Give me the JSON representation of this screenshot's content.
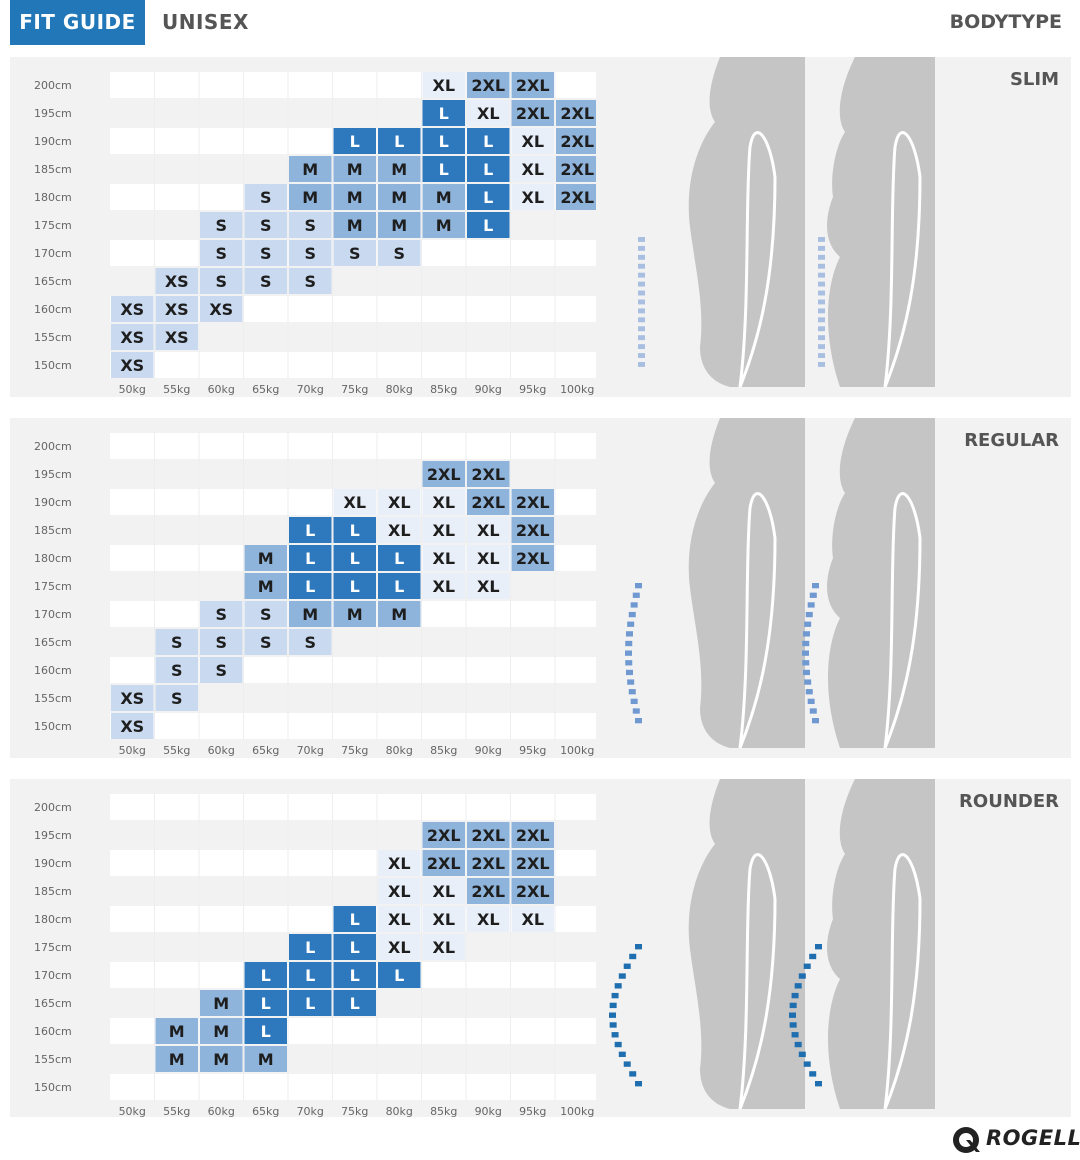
{
  "header": {
    "badge": "FIT GUIDE",
    "subtitle": "UNISEX",
    "right_label": "BODYTYPE"
  },
  "brand": {
    "name": "ROGELLI"
  },
  "colors": {
    "dark": "#2e78bd",
    "medium": "#8fb4dc",
    "light": "#c9d9ef",
    "pale": "#e9eff8",
    "figure": "#c5c5c5",
    "grid": "#f2f2f2"
  },
  "chart_data": [
    {
      "type": "table",
      "title": "SLIM",
      "marker_style": "slim",
      "x": [
        "50kg",
        "55kg",
        "60kg",
        "65kg",
        "70kg",
        "75kg",
        "80kg",
        "85kg",
        "90kg",
        "95kg",
        "100kg"
      ],
      "y": [
        "200cm",
        "195cm",
        "190cm",
        "185cm",
        "180cm",
        "175cm",
        "170cm",
        "165cm",
        "160cm",
        "155cm",
        "150cm"
      ],
      "cells": [
        [
          null,
          null,
          null,
          null,
          null,
          null,
          null,
          "XL",
          "2XL",
          "2XL",
          null
        ],
        [
          null,
          null,
          null,
          null,
          null,
          null,
          null,
          "L",
          "XL",
          "2XL",
          "2XL"
        ],
        [
          null,
          null,
          null,
          null,
          null,
          "L",
          "L",
          "L",
          "L",
          "XL",
          "2XL"
        ],
        [
          null,
          null,
          null,
          null,
          "M",
          "M",
          "M",
          "L",
          "L",
          "XL",
          "2XL"
        ],
        [
          null,
          null,
          null,
          "S",
          "M",
          "M",
          "M",
          "M",
          "L",
          "XL",
          "2XL"
        ],
        [
          null,
          null,
          "S",
          "S",
          "S",
          "M",
          "M",
          "M",
          "L",
          null,
          null
        ],
        [
          null,
          null,
          "S",
          "S",
          "S",
          "S",
          "S",
          null,
          null,
          null,
          null
        ],
        [
          null,
          "XS",
          "S",
          "S",
          "S",
          null,
          null,
          null,
          null,
          null,
          null
        ],
        [
          "XS",
          "XS",
          "XS",
          null,
          null,
          null,
          null,
          null,
          null,
          null,
          null
        ],
        [
          "XS",
          "XS",
          null,
          null,
          null,
          null,
          null,
          null,
          null,
          null,
          null
        ],
        [
          "XS",
          null,
          null,
          null,
          null,
          null,
          null,
          null,
          null,
          null,
          null
        ]
      ],
      "shades": [
        [
          "-",
          "-",
          "-",
          "-",
          "-",
          "-",
          "-",
          "p",
          "m",
          "m",
          "-"
        ],
        [
          "-",
          "-",
          "-",
          "-",
          "-",
          "-",
          "-",
          "d",
          "p",
          "m",
          "m"
        ],
        [
          "-",
          "-",
          "-",
          "-",
          "-",
          "d",
          "d",
          "d",
          "d",
          "p",
          "m"
        ],
        [
          "-",
          "-",
          "-",
          "-",
          "m",
          "m",
          "m",
          "d",
          "d",
          "p",
          "m"
        ],
        [
          "-",
          "-",
          "-",
          "l",
          "m",
          "m",
          "m",
          "m",
          "d",
          "p",
          "m"
        ],
        [
          "-",
          "-",
          "l",
          "l",
          "l",
          "m",
          "m",
          "m",
          "d",
          "-",
          "-"
        ],
        [
          "-",
          "-",
          "l",
          "l",
          "l",
          "l",
          "l",
          "-",
          "-",
          "-",
          "-"
        ],
        [
          "-",
          "l",
          "l",
          "l",
          "l",
          "-",
          "-",
          "-",
          "-",
          "-",
          "-"
        ],
        [
          "l",
          "l",
          "l",
          "-",
          "-",
          "-",
          "-",
          "-",
          "-",
          "-",
          "-"
        ],
        [
          "l",
          "l",
          "-",
          "-",
          "-",
          "-",
          "-",
          "-",
          "-",
          "-",
          "-"
        ],
        [
          "l",
          "-",
          "-",
          "-",
          "-",
          "-",
          "-",
          "-",
          "-",
          "-",
          "-"
        ]
      ]
    },
    {
      "type": "table",
      "title": "REGULAR",
      "marker_style": "regular",
      "x": [
        "50kg",
        "55kg",
        "60kg",
        "65kg",
        "70kg",
        "75kg",
        "80kg",
        "85kg",
        "90kg",
        "95kg",
        "100kg"
      ],
      "y": [
        "200cm",
        "195cm",
        "190cm",
        "185cm",
        "180cm",
        "175cm",
        "170cm",
        "165cm",
        "160cm",
        "155cm",
        "150cm"
      ],
      "cells": [
        [
          null,
          null,
          null,
          null,
          null,
          null,
          null,
          null,
          null,
          null,
          null
        ],
        [
          null,
          null,
          null,
          null,
          null,
          null,
          null,
          "2XL",
          "2XL",
          null,
          null
        ],
        [
          null,
          null,
          null,
          null,
          null,
          "XL",
          "XL",
          "XL",
          "2XL",
          "2XL",
          null
        ],
        [
          null,
          null,
          null,
          null,
          "L",
          "L",
          "XL",
          "XL",
          "XL",
          "2XL",
          null
        ],
        [
          null,
          null,
          null,
          "M",
          "L",
          "L",
          "L",
          "XL",
          "XL",
          "2XL",
          null
        ],
        [
          null,
          null,
          null,
          "M",
          "L",
          "L",
          "L",
          "XL",
          "XL",
          null,
          null
        ],
        [
          null,
          null,
          "S",
          "S",
          "M",
          "M",
          "M",
          null,
          null,
          null,
          null
        ],
        [
          null,
          "S",
          "S",
          "S",
          "S",
          null,
          null,
          null,
          null,
          null,
          null
        ],
        [
          null,
          "S",
          "S",
          null,
          null,
          null,
          null,
          null,
          null,
          null,
          null
        ],
        [
          "XS",
          "S",
          null,
          null,
          null,
          null,
          null,
          null,
          null,
          null,
          null
        ],
        [
          "XS",
          null,
          null,
          null,
          null,
          null,
          null,
          null,
          null,
          null,
          null
        ]
      ],
      "shades": [
        [
          "-",
          "-",
          "-",
          "-",
          "-",
          "-",
          "-",
          "-",
          "-",
          "-",
          "-"
        ],
        [
          "-",
          "-",
          "-",
          "-",
          "-",
          "-",
          "-",
          "m",
          "m",
          "-",
          "-"
        ],
        [
          "-",
          "-",
          "-",
          "-",
          "-",
          "p",
          "p",
          "p",
          "m",
          "m",
          "-"
        ],
        [
          "-",
          "-",
          "-",
          "-",
          "d",
          "d",
          "p",
          "p",
          "p",
          "m",
          "-"
        ],
        [
          "-",
          "-",
          "-",
          "m",
          "d",
          "d",
          "d",
          "p",
          "p",
          "m",
          "-"
        ],
        [
          "-",
          "-",
          "-",
          "m",
          "d",
          "d",
          "d",
          "p",
          "p",
          "-",
          "-"
        ],
        [
          "-",
          "-",
          "l",
          "l",
          "m",
          "m",
          "m",
          "-",
          "-",
          "-",
          "-"
        ],
        [
          "-",
          "l",
          "l",
          "l",
          "l",
          "-",
          "-",
          "-",
          "-",
          "-",
          "-"
        ],
        [
          "-",
          "l",
          "l",
          "-",
          "-",
          "-",
          "-",
          "-",
          "-",
          "-",
          "-"
        ],
        [
          "l",
          "l",
          "-",
          "-",
          "-",
          "-",
          "-",
          "-",
          "-",
          "-",
          "-"
        ],
        [
          "l",
          "-",
          "-",
          "-",
          "-",
          "-",
          "-",
          "-",
          "-",
          "-",
          "-"
        ]
      ]
    },
    {
      "type": "table",
      "title": "ROUNDER",
      "marker_style": "rounder",
      "x": [
        "50kg",
        "55kg",
        "60kg",
        "65kg",
        "70kg",
        "75kg",
        "80kg",
        "85kg",
        "90kg",
        "95kg",
        "100kg"
      ],
      "y": [
        "200cm",
        "195cm",
        "190cm",
        "185cm",
        "180cm",
        "175cm",
        "170cm",
        "165cm",
        "160cm",
        "155cm",
        "150cm"
      ],
      "cells": [
        [
          null,
          null,
          null,
          null,
          null,
          null,
          null,
          null,
          null,
          null,
          null
        ],
        [
          null,
          null,
          null,
          null,
          null,
          null,
          null,
          "2XL",
          "2XL",
          "2XL",
          null
        ],
        [
          null,
          null,
          null,
          null,
          null,
          null,
          "XL",
          "2XL",
          "2XL",
          "2XL",
          null
        ],
        [
          null,
          null,
          null,
          null,
          null,
          null,
          "XL",
          "XL",
          "2XL",
          "2XL",
          null
        ],
        [
          null,
          null,
          null,
          null,
          null,
          "L",
          "XL",
          "XL",
          "XL",
          "XL",
          null
        ],
        [
          null,
          null,
          null,
          null,
          "L",
          "L",
          "XL",
          "XL",
          null,
          null,
          null
        ],
        [
          null,
          null,
          null,
          "L",
          "L",
          "L",
          "L",
          null,
          null,
          null,
          null
        ],
        [
          null,
          null,
          "M",
          "L",
          "L",
          "L",
          null,
          null,
          null,
          null,
          null
        ],
        [
          null,
          "M",
          "M",
          "L",
          null,
          null,
          null,
          null,
          null,
          null,
          null
        ],
        [
          null,
          "M",
          "M",
          "M",
          null,
          null,
          null,
          null,
          null,
          null,
          null
        ],
        [
          null,
          null,
          null,
          null,
          null,
          null,
          null,
          null,
          null,
          null,
          null
        ]
      ],
      "shades": [
        [
          "-",
          "-",
          "-",
          "-",
          "-",
          "-",
          "-",
          "-",
          "-",
          "-",
          "-"
        ],
        [
          "-",
          "-",
          "-",
          "-",
          "-",
          "-",
          "-",
          "m",
          "m",
          "m",
          "-"
        ],
        [
          "-",
          "-",
          "-",
          "-",
          "-",
          "-",
          "p",
          "m",
          "m",
          "m",
          "-"
        ],
        [
          "-",
          "-",
          "-",
          "-",
          "-",
          "-",
          "p",
          "p",
          "m",
          "m",
          "-"
        ],
        [
          "-",
          "-",
          "-",
          "-",
          "-",
          "d",
          "p",
          "p",
          "p",
          "p",
          "-"
        ],
        [
          "-",
          "-",
          "-",
          "-",
          "d",
          "d",
          "p",
          "p",
          "-",
          "-",
          "-"
        ],
        [
          "-",
          "-",
          "-",
          "d",
          "d",
          "d",
          "d",
          "-",
          "-",
          "-",
          "-"
        ],
        [
          "-",
          "-",
          "m",
          "d",
          "d",
          "d",
          "-",
          "-",
          "-",
          "-",
          "-"
        ],
        [
          "-",
          "m",
          "m",
          "d",
          "-",
          "-",
          "-",
          "-",
          "-",
          "-",
          "-"
        ],
        [
          "-",
          "m",
          "m",
          "m",
          "-",
          "-",
          "-",
          "-",
          "-",
          "-",
          "-"
        ],
        [
          "-",
          "-",
          "-",
          "-",
          "-",
          "-",
          "-",
          "-",
          "-",
          "-",
          "-"
        ]
      ]
    }
  ]
}
